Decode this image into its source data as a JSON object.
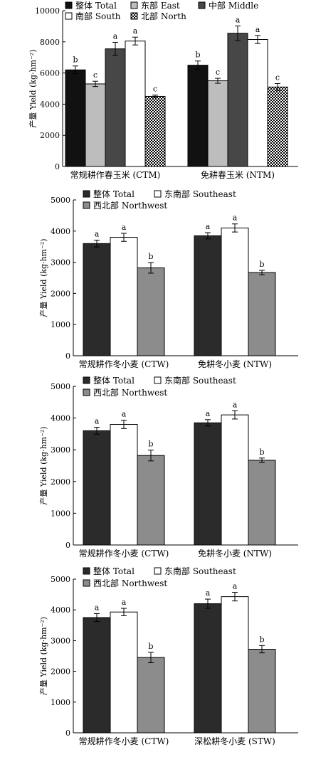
{
  "chart_data": [
    {
      "type": "bar",
      "categories": [
        "常规耕作春玉米 (CTM)",
        "免耕春玉米 (NTM)"
      ],
      "ylabel": "产量 Yield (kg·hm⁻²)",
      "ylim": [
        0,
        10000
      ],
      "yticks": [
        0,
        2000,
        4000,
        6000,
        8000,
        10000
      ],
      "legend_columns": 3,
      "series": [
        {
          "name": "整体 Total",
          "fill": "solid",
          "color": "#111111",
          "values": [
            6200,
            6500
          ],
          "errors": [
            250,
            270
          ],
          "letters": [
            "b",
            "b"
          ]
        },
        {
          "name": "东部 East",
          "fill": "solid",
          "color": "#bdbdbd",
          "values": [
            5300,
            5500
          ],
          "errors": [
            170,
            160
          ],
          "letters": [
            "c",
            "c"
          ]
        },
        {
          "name": "中部 Middle",
          "fill": "solid",
          "color": "#474747",
          "values": [
            7550,
            8550
          ],
          "errors": [
            420,
            470
          ],
          "letters": [
            "a",
            "a"
          ]
        },
        {
          "name": "南部 South",
          "fill": "solid",
          "color": "#ffffff",
          "values": [
            8050,
            8150
          ],
          "errors": [
            250,
            260
          ],
          "letters": [
            "a",
            "a"
          ]
        },
        {
          "name": "北部 North",
          "fill": "dots",
          "color": "#000000",
          "values": [
            4500,
            5100
          ],
          "errors": [
            80,
            220
          ],
          "letters": [
            "c",
            "c"
          ]
        }
      ]
    },
    {
      "type": "bar",
      "categories": [
        "常规耕作冬小麦 (CTW)",
        "免耕冬小麦 (NTW)"
      ],
      "ylabel": "产量 Yield (kg·hm⁻²)",
      "ylim": [
        0,
        5000
      ],
      "yticks": [
        0,
        1000,
        2000,
        3000,
        4000,
        5000
      ],
      "legend_columns": 2,
      "series": [
        {
          "name": "整体 Total",
          "fill": "solid",
          "color": "#2b2b2b",
          "values": [
            3600,
            3850
          ],
          "errors": [
            110,
            100
          ],
          "letters": [
            "a",
            "a"
          ]
        },
        {
          "name": "东南部 Southeast",
          "fill": "solid",
          "color": "#ffffff",
          "values": [
            3800,
            4100
          ],
          "errors": [
            130,
            130
          ],
          "letters": [
            "a",
            "a"
          ]
        },
        {
          "name": "西北部 Northwest",
          "fill": "solid",
          "color": "#8c8c8c",
          "values": [
            2820,
            2670
          ],
          "errors": [
            170,
            70
          ],
          "letters": [
            "b",
            "b"
          ]
        }
      ]
    },
    {
      "type": "bar",
      "categories": [
        "常规耕作冬小麦 (CTW)",
        "免耕冬小麦 (NTW)"
      ],
      "ylabel": "产量 Yield (kg·hm⁻²)",
      "ylim": [
        0,
        5000
      ],
      "yticks": [
        0,
        1000,
        2000,
        3000,
        4000,
        5000
      ],
      "legend_columns": 2,
      "series": [
        {
          "name": "整体 Total",
          "fill": "solid",
          "color": "#2b2b2b",
          "values": [
            3600,
            3850
          ],
          "errors": [
            110,
            100
          ],
          "letters": [
            "a",
            "a"
          ]
        },
        {
          "name": "东南部 Southeast",
          "fill": "solid",
          "color": "#ffffff",
          "values": [
            3800,
            4100
          ],
          "errors": [
            130,
            130
          ],
          "letters": [
            "a",
            "a"
          ]
        },
        {
          "name": "西北部 Northwest",
          "fill": "solid",
          "color": "#8c8c8c",
          "values": [
            2820,
            2670
          ],
          "errors": [
            170,
            70
          ],
          "letters": [
            "b",
            "b"
          ]
        }
      ]
    },
    {
      "type": "bar",
      "categories": [
        "常规耕作冬小麦 (CTW)",
        "深松耕冬小麦 (STW)"
      ],
      "ylabel": "产量 Yield (kg·hm⁻²)",
      "ylim": [
        0,
        5000
      ],
      "yticks": [
        0,
        1000,
        2000,
        3000,
        4000,
        5000
      ],
      "legend_columns": 2,
      "series": [
        {
          "name": "整体 Total",
          "fill": "solid",
          "color": "#2b2b2b",
          "values": [
            3750,
            4200
          ],
          "errors": [
            130,
            150
          ],
          "letters": [
            "a",
            "a"
          ]
        },
        {
          "name": "东南部 Southeast",
          "fill": "solid",
          "color": "#ffffff",
          "values": [
            3930,
            4430
          ],
          "errors": [
            120,
            140
          ],
          "letters": [
            "a",
            "a"
          ]
        },
        {
          "name": "西北部 Northwest",
          "fill": "solid",
          "color": "#8c8c8c",
          "values": [
            2450,
            2720
          ],
          "errors": [
            170,
            120
          ],
          "letters": [
            "b",
            "b"
          ]
        }
      ]
    }
  ]
}
